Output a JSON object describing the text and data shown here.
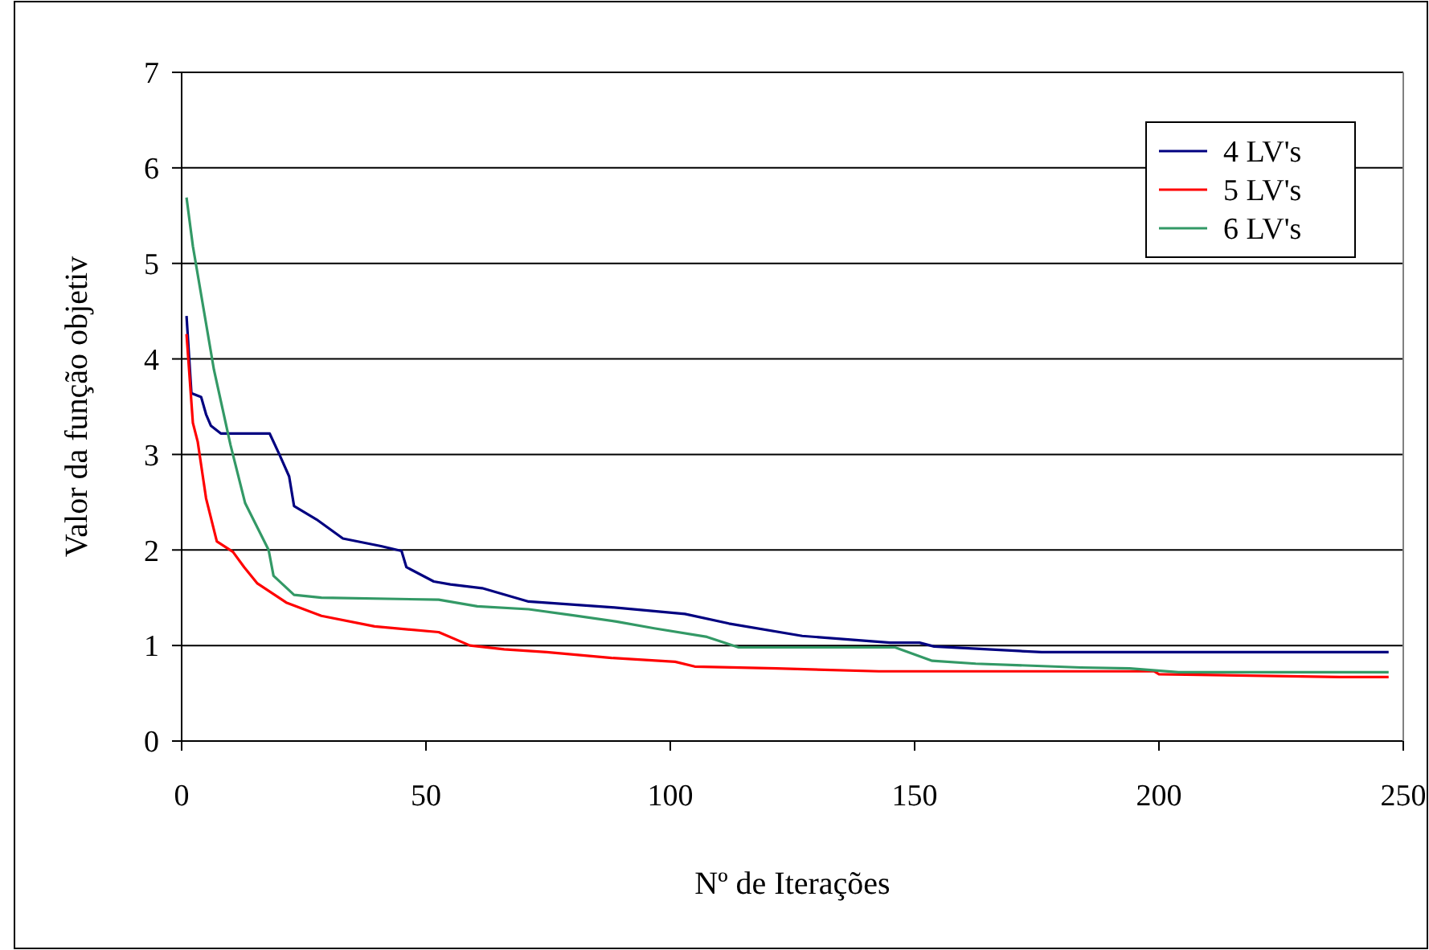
{
  "chart_data": {
    "type": "line",
    "xlabel": "Nº de Iterações",
    "ylabel": "Valor da função objetiv",
    "xlim": [
      0,
      250
    ],
    "ylim": [
      0,
      7
    ],
    "xticks": [
      0,
      50,
      100,
      150,
      200,
      250
    ],
    "yticks": [
      0,
      1,
      2,
      3,
      4,
      5,
      6,
      7
    ],
    "grid": "y",
    "legend": "top right",
    "marker": "none",
    "line_style": "solid",
    "series": [
      {
        "name": "4 LV's",
        "color": "#000080",
        "x": [
          1,
          2,
          4,
          5,
          6,
          8,
          18,
          20,
          22,
          23,
          27.6,
          33,
          40.8,
          45,
          46,
          51.6,
          55,
          61.5,
          71,
          88,
          103,
          112,
          127,
          145,
          151,
          154,
          176,
          247
        ],
        "values": [
          4.45,
          3.64,
          3.6,
          3.42,
          3.3,
          3.22,
          3.22,
          3.0,
          2.77,
          2.46,
          2.32,
          2.12,
          2.04,
          1.99,
          1.82,
          1.67,
          1.64,
          1.6,
          1.46,
          1.4,
          1.33,
          1.23,
          1.1,
          1.03,
          1.03,
          0.99,
          0.93,
          0.93
        ]
      },
      {
        "name": "5 LV's",
        "color": "#ff0000",
        "x": [
          1,
          2.3,
          3.3,
          5,
          7.2,
          10.5,
          12.8,
          15.5,
          21.4,
          28.6,
          39.5,
          52.6,
          59,
          66,
          74.7,
          88,
          101,
          105,
          121.7,
          142.7,
          199,
          200,
          237,
          247
        ],
        "values": [
          4.26,
          3.33,
          3.13,
          2.54,
          2.09,
          1.98,
          1.82,
          1.65,
          1.45,
          1.31,
          1.2,
          1.14,
          1.0,
          0.96,
          0.93,
          0.87,
          0.83,
          0.78,
          0.76,
          0.73,
          0.73,
          0.7,
          0.67,
          0.67
        ]
      },
      {
        "name": "6 LV's",
        "color": "#339966",
        "x": [
          1,
          2.3,
          6.6,
          10,
          13,
          17.8,
          18.8,
          23,
          28.6,
          52.6,
          60.5,
          71,
          81,
          89,
          96.7,
          107.5,
          114,
          146,
          153.6,
          162.5,
          184,
          194,
          204,
          247
        ],
        "values": [
          5.69,
          5.18,
          3.89,
          3.1,
          2.49,
          2.0,
          1.73,
          1.53,
          1.5,
          1.48,
          1.41,
          1.38,
          1.31,
          1.25,
          1.18,
          1.09,
          0.98,
          0.98,
          0.84,
          0.81,
          0.77,
          0.76,
          0.72,
          0.72
        ]
      }
    ]
  }
}
